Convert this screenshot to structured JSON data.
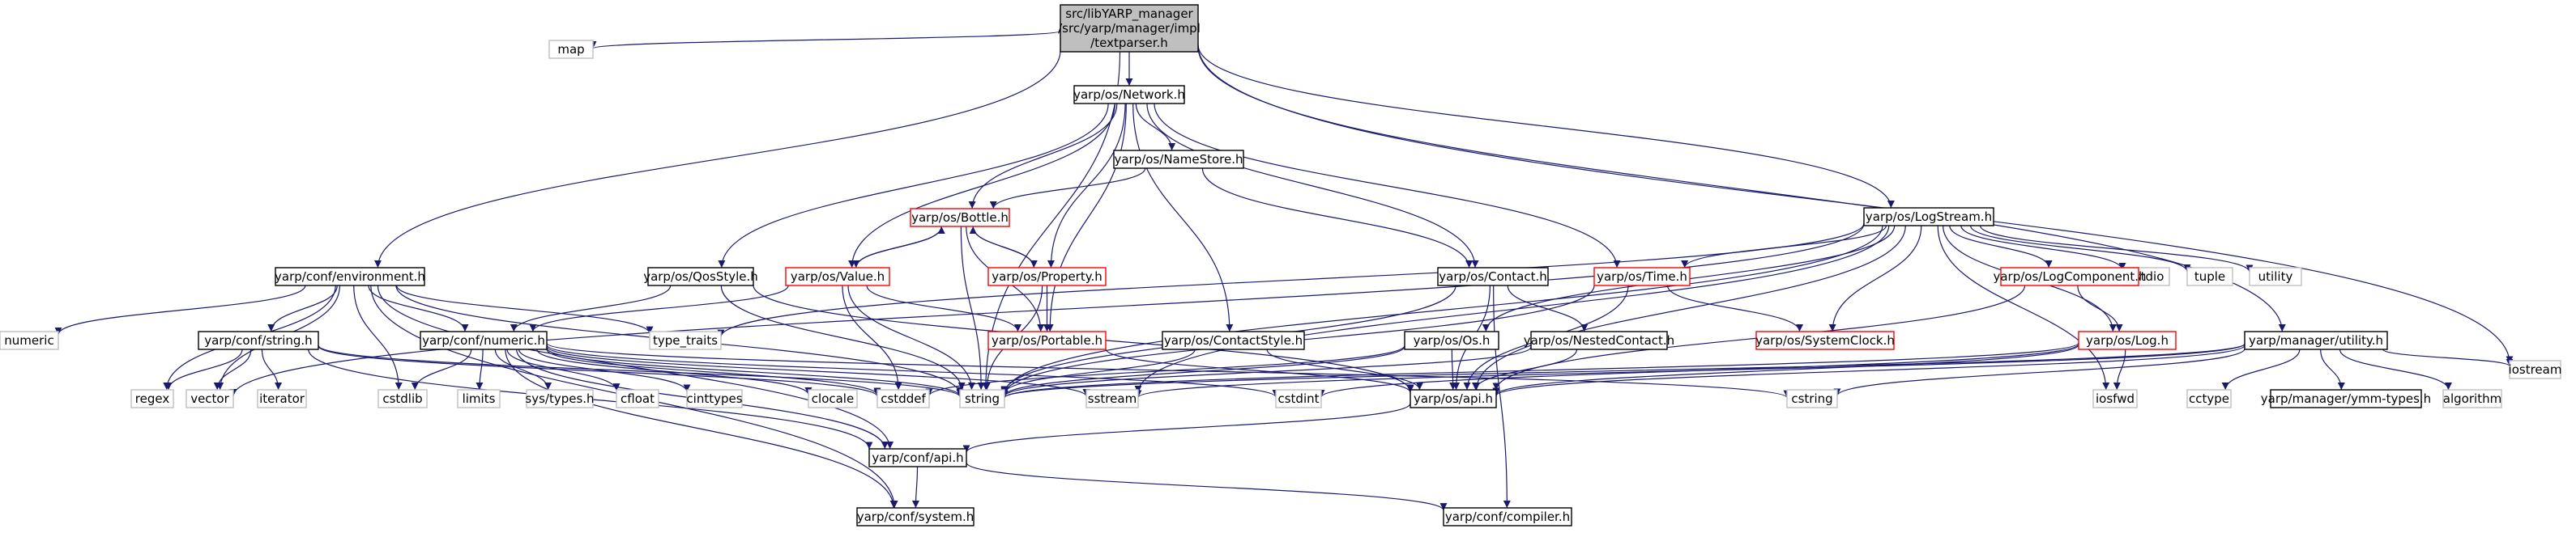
{
  "colors": {
    "edge": "#191970",
    "border_default": "#000000",
    "border_missing": "#bfbfbf",
    "border_truncated": "#ff0000",
    "fill_root": "#bfbfbf",
    "fill_default": "#ffffff"
  },
  "nodes": [
    {
      "id": "root",
      "lines": [
        "src/libYARP_manager",
        "/src/yarp/manager/impl",
        "/textparser.h"
      ],
      "style": "root"
    },
    {
      "id": "map",
      "lines": [
        "map"
      ],
      "style": "missing"
    },
    {
      "id": "network",
      "lines": [
        "yarp/os/Network.h"
      ],
      "style": "default"
    },
    {
      "id": "logstream",
      "lines": [
        "yarp/os/LogStream.h"
      ],
      "style": "default"
    },
    {
      "id": "environment",
      "lines": [
        "yarp/conf/environment.h"
      ],
      "style": "default"
    },
    {
      "id": "iostream",
      "lines": [
        "iostream"
      ],
      "style": "missing"
    },
    {
      "id": "namestore",
      "lines": [
        "yarp/os/NameStore.h"
      ],
      "style": "default"
    },
    {
      "id": "bottle",
      "lines": [
        "yarp/os/Bottle.h"
      ],
      "style": "truncated"
    },
    {
      "id": "qosstyle",
      "lines": [
        "yarp/os/QosStyle.h"
      ],
      "style": "default"
    },
    {
      "id": "value",
      "lines": [
        "yarp/os/Value.h"
      ],
      "style": "truncated"
    },
    {
      "id": "property",
      "lines": [
        "yarp/os/Property.h"
      ],
      "style": "truncated"
    },
    {
      "id": "contact",
      "lines": [
        "yarp/os/Contact.h"
      ],
      "style": "default"
    },
    {
      "id": "time",
      "lines": [
        "yarp/os/Time.h"
      ],
      "style": "truncated"
    },
    {
      "id": "cstdio",
      "lines": [
        "cstdio"
      ],
      "style": "missing"
    },
    {
      "id": "tuple",
      "lines": [
        "tuple"
      ],
      "style": "missing"
    },
    {
      "id": "utility",
      "lines": [
        "utility"
      ],
      "style": "missing"
    },
    {
      "id": "logcomponent",
      "lines": [
        "yarp/os/LogComponent.h"
      ],
      "style": "truncated"
    },
    {
      "id": "numeric",
      "lines": [
        "numeric"
      ],
      "style": "missing"
    },
    {
      "id": "typetraits",
      "lines": [
        "type_traits"
      ],
      "style": "missing"
    },
    {
      "id": "confnumeric",
      "lines": [
        "yarp/conf/numeric.h"
      ],
      "style": "default"
    },
    {
      "id": "confstring",
      "lines": [
        "yarp/conf/string.h"
      ],
      "style": "default"
    },
    {
      "id": "portable",
      "lines": [
        "yarp/os/Portable.h"
      ],
      "style": "truncated"
    },
    {
      "id": "contactstyle",
      "lines": [
        "yarp/os/ContactStyle.h"
      ],
      "style": "default"
    },
    {
      "id": "osos",
      "lines": [
        "yarp/os/Os.h"
      ],
      "style": "default"
    },
    {
      "id": "nestedcontact",
      "lines": [
        "yarp/os/NestedContact.h"
      ],
      "style": "default"
    },
    {
      "id": "systemclock",
      "lines": [
        "yarp/os/SystemClock.h"
      ],
      "style": "truncated"
    },
    {
      "id": "log",
      "lines": [
        "yarp/os/Log.h"
      ],
      "style": "truncated"
    },
    {
      "id": "utilityh",
      "lines": [
        "yarp/manager/utility.h"
      ],
      "style": "default"
    },
    {
      "id": "regex",
      "lines": [
        "regex"
      ],
      "style": "missing"
    },
    {
      "id": "vector",
      "lines": [
        "vector"
      ],
      "style": "missing"
    },
    {
      "id": "iterator",
      "lines": [
        "iterator"
      ],
      "style": "missing"
    },
    {
      "id": "cstdlib",
      "lines": [
        "cstdlib"
      ],
      "style": "missing"
    },
    {
      "id": "limits",
      "lines": [
        "limits"
      ],
      "style": "missing"
    },
    {
      "id": "systypes",
      "lines": [
        "sys/types.h"
      ],
      "style": "missing"
    },
    {
      "id": "cfloat",
      "lines": [
        "cfloat"
      ],
      "style": "missing"
    },
    {
      "id": "cinttypes",
      "lines": [
        "cinttypes"
      ],
      "style": "missing"
    },
    {
      "id": "clocale",
      "lines": [
        "clocale"
      ],
      "style": "missing"
    },
    {
      "id": "cstddef",
      "lines": [
        "cstddef"
      ],
      "style": "missing"
    },
    {
      "id": "string",
      "lines": [
        "string"
      ],
      "style": "missing"
    },
    {
      "id": "sstream",
      "lines": [
        "sstream"
      ],
      "style": "missing"
    },
    {
      "id": "cstdint",
      "lines": [
        "cstdint"
      ],
      "style": "missing"
    },
    {
      "id": "osapi",
      "lines": [
        "yarp/os/api.h"
      ],
      "style": "default"
    },
    {
      "id": "cstring",
      "lines": [
        "cstring"
      ],
      "style": "missing"
    },
    {
      "id": "iosfwd",
      "lines": [
        "iosfwd"
      ],
      "style": "missing"
    },
    {
      "id": "cctype",
      "lines": [
        "cctype"
      ],
      "style": "missing"
    },
    {
      "id": "ymmtypes",
      "lines": [
        "yarp/manager/ymm-types.h"
      ],
      "style": "default"
    },
    {
      "id": "algorithm",
      "lines": [
        "algorithm"
      ],
      "style": "missing"
    },
    {
      "id": "confapi",
      "lines": [
        "yarp/conf/api.h"
      ],
      "style": "default"
    },
    {
      "id": "confsystem",
      "lines": [
        "yarp/conf/system.h"
      ],
      "style": "default"
    },
    {
      "id": "confcompiler",
      "lines": [
        "yarp/conf/compiler.h"
      ],
      "style": "default"
    }
  ],
  "edges": [
    [
      "root",
      "map"
    ],
    [
      "root",
      "network"
    ],
    [
      "root",
      "logstream"
    ],
    [
      "root",
      "environment"
    ],
    [
      "root",
      "iostream"
    ],
    [
      "root",
      "string"
    ],
    [
      "root",
      "utilityh"
    ],
    [
      "network",
      "namestore"
    ],
    [
      "network",
      "bottle"
    ],
    [
      "network",
      "qosstyle"
    ],
    [
      "network",
      "value"
    ],
    [
      "network",
      "property"
    ],
    [
      "network",
      "contact"
    ],
    [
      "network",
      "time"
    ],
    [
      "network",
      "portable"
    ],
    [
      "network",
      "contactstyle"
    ],
    [
      "namestore",
      "contact"
    ],
    [
      "namestore",
      "bottle"
    ],
    [
      "bottle",
      "value"
    ],
    [
      "bottle",
      "property"
    ],
    [
      "bottle",
      "portable"
    ],
    [
      "bottle",
      "string"
    ],
    [
      "value",
      "bottle"
    ],
    [
      "value",
      "portable"
    ],
    [
      "value",
      "string"
    ],
    [
      "value",
      "confnumeric"
    ],
    [
      "value",
      "cstddef"
    ],
    [
      "property",
      "bottle"
    ],
    [
      "property",
      "portable"
    ],
    [
      "property",
      "string"
    ],
    [
      "qosstyle",
      "confnumeric"
    ],
    [
      "qosstyle",
      "string"
    ],
    [
      "qosstyle",
      "osapi"
    ],
    [
      "contact",
      "nestedcontact"
    ],
    [
      "contact",
      "string"
    ],
    [
      "contact",
      "osapi"
    ],
    [
      "contact",
      "confcompiler"
    ],
    [
      "time",
      "systemclock"
    ],
    [
      "time",
      "osapi"
    ],
    [
      "time",
      "string"
    ],
    [
      "portable",
      "osapi"
    ],
    [
      "contactstyle",
      "string"
    ],
    [
      "contactstyle",
      "osapi"
    ],
    [
      "osos",
      "osapi"
    ],
    [
      "osos",
      "string"
    ],
    [
      "osos",
      "cstddef"
    ],
    [
      "nestedcontact",
      "osapi"
    ],
    [
      "nestedcontact",
      "string"
    ],
    [
      "logstream",
      "typetraits"
    ],
    [
      "logstream",
      "time"
    ],
    [
      "logstream",
      "osos"
    ],
    [
      "logstream",
      "systemclock"
    ],
    [
      "logstream",
      "logcomponent"
    ],
    [
      "logstream",
      "log"
    ],
    [
      "logstream",
      "cstdio"
    ],
    [
      "logstream",
      "tuple"
    ],
    [
      "logstream",
      "utility"
    ],
    [
      "logstream",
      "string"
    ],
    [
      "logstream",
      "sstream"
    ],
    [
      "logstream",
      "iosfwd"
    ],
    [
      "logstream",
      "osapi"
    ],
    [
      "logstream",
      "vector"
    ],
    [
      "logcomponent",
      "log"
    ],
    [
      "logcomponent",
      "osapi"
    ],
    [
      "log",
      "iosfwd"
    ],
    [
      "log",
      "osapi"
    ],
    [
      "log",
      "string"
    ],
    [
      "log",
      "cstdint"
    ],
    [
      "environment",
      "numeric"
    ],
    [
      "environment",
      "typetraits"
    ],
    [
      "environment",
      "confnumeric"
    ],
    [
      "environment",
      "confstring"
    ],
    [
      "environment",
      "regex"
    ],
    [
      "environment",
      "vector"
    ],
    [
      "environment",
      "cstdlib"
    ],
    [
      "environment",
      "string"
    ],
    [
      "environment",
      "confapi"
    ],
    [
      "environment",
      "confsystem"
    ],
    [
      "confnumeric",
      "cstdlib"
    ],
    [
      "confnumeric",
      "limits"
    ],
    [
      "confnumeric",
      "systypes"
    ],
    [
      "confnumeric",
      "cfloat"
    ],
    [
      "confnumeric",
      "cinttypes"
    ],
    [
      "confnumeric",
      "clocale"
    ],
    [
      "confnumeric",
      "cstddef"
    ],
    [
      "confnumeric",
      "string"
    ],
    [
      "confnumeric",
      "sstream"
    ],
    [
      "confnumeric",
      "cstdint"
    ],
    [
      "confnumeric",
      "cstring"
    ],
    [
      "confnumeric",
      "confapi"
    ],
    [
      "confnumeric",
      "confsystem"
    ],
    [
      "confstring",
      "regex"
    ],
    [
      "confstring",
      "vector"
    ],
    [
      "confstring",
      "iterator"
    ],
    [
      "confstring",
      "string"
    ],
    [
      "confstring",
      "cstddef"
    ],
    [
      "confstring",
      "confapi"
    ],
    [
      "utilityh",
      "string"
    ],
    [
      "utilityh",
      "sstream"
    ],
    [
      "utilityh",
      "cstring"
    ],
    [
      "utilityh",
      "cctype"
    ],
    [
      "utilityh",
      "ymmtypes"
    ],
    [
      "utilityh",
      "algorithm"
    ],
    [
      "utilityh",
      "iostream"
    ],
    [
      "utilityh",
      "osapi"
    ],
    [
      "osapi",
      "confapi"
    ],
    [
      "confapi",
      "confsystem"
    ],
    [
      "confapi",
      "confcompiler"
    ]
  ]
}
